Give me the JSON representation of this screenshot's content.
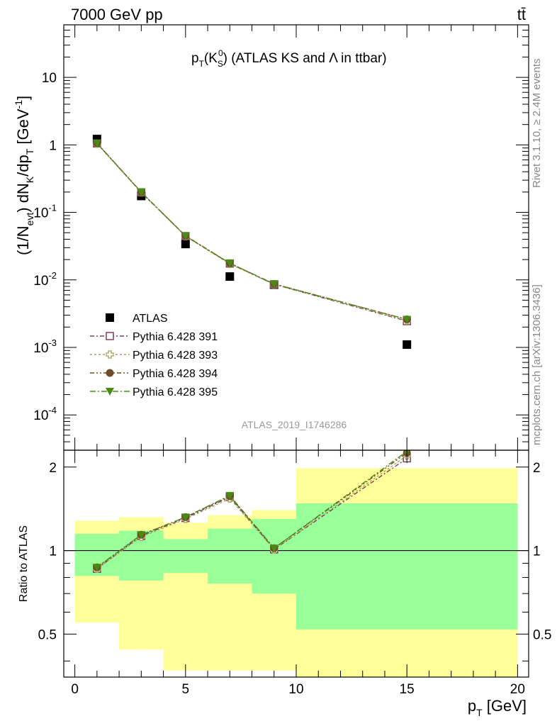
{
  "header": {
    "energy": "7000 GeV pp",
    "process": "tt̄"
  },
  "side_labels": {
    "rivet": "Rivet 3.1.10, ≥ 2.4M events",
    "mcplots": "mcplots.cern.ch [arXiv:1306.3436]"
  },
  "chart_data": [
    {
      "type": "scatter",
      "title": "p_T(K_S^0) (ATLAS KS and Λ in ttbar)",
      "ylabel": "(1/N_evt) dN_K/dp_T [GeV^-1]",
      "yscale": "log",
      "ylim": [
        3e-05,
        60
      ],
      "xlim": [
        -0.5,
        20.5
      ],
      "y_tick_labels": [
        "10^-4",
        "10^-3",
        "10^-2",
        "10^-1",
        "1",
        "10"
      ],
      "analysis_id": "ATLAS_2019_I1746286",
      "legend_position": "bottom-left",
      "x": [
        1,
        3,
        5,
        7,
        9,
        15
      ],
      "series": [
        {
          "name": "ATLAS",
          "color": "#000000",
          "marker": "square-filled",
          "values": [
            1.22,
            0.175,
            0.034,
            0.0112,
            0.0085,
            0.0011
          ]
        },
        {
          "name": "Pythia 6.428 391",
          "color": "#7e3f5e",
          "marker": "square-open",
          "values": [
            1.05,
            0.198,
            0.0445,
            0.0175,
            0.0086,
            0.00245
          ]
        },
        {
          "name": "Pythia 6.428 393",
          "color": "#a8a05a",
          "marker": "cross-open",
          "values": [
            1.04,
            0.197,
            0.0443,
            0.0172,
            0.0086,
            0.0025
          ]
        },
        {
          "name": "Pythia 6.428 394",
          "color": "#704c28",
          "marker": "circle-filled",
          "values": [
            1.06,
            0.199,
            0.0448,
            0.0176,
            0.0087,
            0.0026
          ]
        },
        {
          "name": "Pythia 6.428 395",
          "color": "#4a8a14",
          "marker": "triangle-down-filled",
          "values": [
            1.06,
            0.2,
            0.045,
            0.0177,
            0.0087,
            0.0026
          ]
        }
      ]
    },
    {
      "type": "scatter",
      "xlabel": "p_T [GeV]",
      "ylabel": "Ratio to ATLAS",
      "ylim": [
        0.35,
        2.3
      ],
      "xlim": [
        -0.5,
        20.5
      ],
      "x_ticks": [
        0,
        5,
        10,
        15,
        20
      ],
      "y_ticks": [
        0.5,
        1,
        2
      ],
      "reference_line": 1,
      "bands": [
        {
          "x": [
            0,
            2
          ],
          "green": [
            0.81,
            1.15
          ],
          "yellow": [
            0.55,
            1.28
          ]
        },
        {
          "x": [
            2,
            4
          ],
          "green": [
            0.78,
            1.18
          ],
          "yellow": [
            0.44,
            1.32
          ]
        },
        {
          "x": [
            4,
            6
          ],
          "green": [
            0.83,
            1.1
          ],
          "yellow": [
            0.37,
            1.26
          ]
        },
        {
          "x": [
            6,
            8
          ],
          "green": [
            0.76,
            1.2
          ],
          "yellow": [
            0.37,
            1.34
          ]
        },
        {
          "x": [
            8,
            10
          ],
          "green": [
            0.7,
            1.3
          ],
          "yellow": [
            0.37,
            1.4
          ]
        },
        {
          "x": [
            10,
            20
          ],
          "green": [
            0.52,
            1.48
          ],
          "yellow": [
            0.35,
            1.98
          ]
        }
      ],
      "x": [
        1,
        3,
        5,
        7,
        9,
        15
      ],
      "series": [
        {
          "name": "Pythia 6.428 391",
          "color": "#7e3f5e",
          "marker": "square-open",
          "values": [
            0.86,
            1.13,
            1.31,
            1.56,
            1.01,
            2.15
          ]
        },
        {
          "name": "Pythia 6.428 393",
          "color": "#a8a05a",
          "marker": "cross-open",
          "values": [
            0.86,
            1.12,
            1.3,
            1.54,
            1.01,
            2.2
          ]
        },
        {
          "name": "Pythia 6.428 394",
          "color": "#704c28",
          "marker": "circle-filled",
          "values": [
            0.87,
            1.14,
            1.32,
            1.57,
            1.02,
            2.25
          ]
        },
        {
          "name": "Pythia 6.428 395",
          "color": "#4a8a14",
          "marker": "triangle-down-filled",
          "values": [
            0.87,
            1.14,
            1.32,
            1.58,
            1.02,
            2.28
          ]
        }
      ]
    }
  ]
}
